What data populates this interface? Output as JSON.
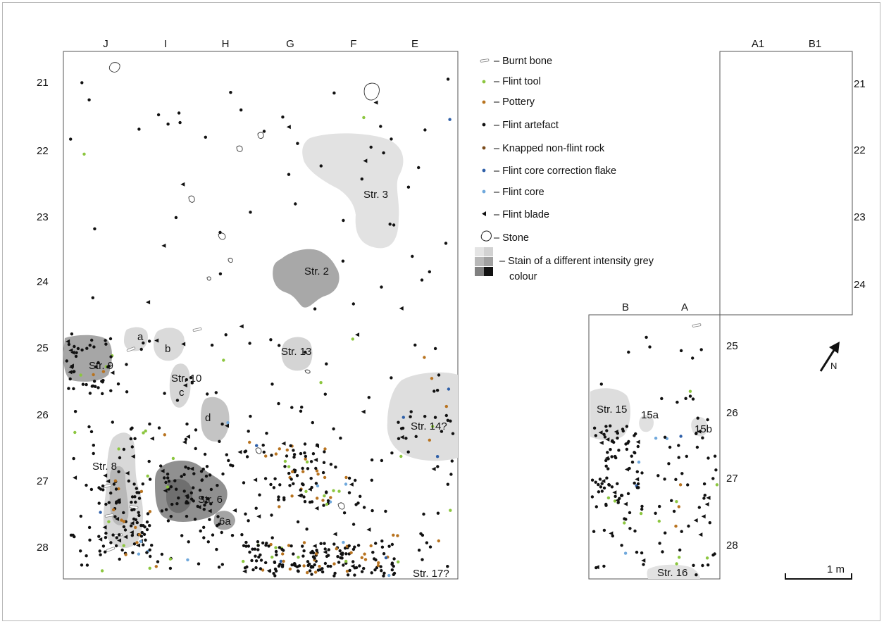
{
  "columns": {
    "main": [
      "J",
      "I",
      "H",
      "G",
      "F",
      "E"
    ],
    "ne": [
      "A1",
      "B1"
    ],
    "se": [
      "B",
      "A"
    ]
  },
  "rows": {
    "main": [
      "21",
      "22",
      "23",
      "24",
      "25",
      "26",
      "27",
      "28"
    ],
    "ne": [
      "21",
      "22",
      "23",
      "24"
    ],
    "se": [
      "25",
      "26",
      "27",
      "28"
    ]
  },
  "structures": {
    "str2": "Str. 2",
    "str3": "Str. 3",
    "str6": "Str. 6",
    "str6a": "6a",
    "str8": "Str. 8",
    "str9": "Str. 9",
    "str10": "Str. 10",
    "str13": "Str. 13",
    "str14": "Str. 14?",
    "str15": "Str. 15",
    "str15a": "15a",
    "str15b": "15b",
    "str16": "Str. 16",
    "str17": "Str. 17?",
    "a": "a",
    "b": "b",
    "c": "c",
    "d": "d"
  },
  "legend": [
    {
      "symbol": "burnt-bone",
      "label": "– Burnt bone"
    },
    {
      "symbol": "flint-tool",
      "label": "– Flint tool",
      "color": "#8cc63f"
    },
    {
      "symbol": "pottery",
      "label": "– Pottery",
      "color": "#b8731f"
    },
    {
      "symbol": "flint-artefact",
      "label": "– Flint artefact",
      "color": "#111111"
    },
    {
      "symbol": "knapped-rock",
      "label": "– Knapped non-flint rock",
      "color": "#7a4a1a"
    },
    {
      "symbol": "core-flake",
      "label": "– Flint core correction flake",
      "color": "#2e5fa8"
    },
    {
      "symbol": "flint-core",
      "label": "– Flint core",
      "color": "#6fa8dc"
    },
    {
      "symbol": "flint-blade",
      "label": "– Flint blade",
      "color": "#111111"
    },
    {
      "symbol": "stone",
      "label": "– Stone"
    },
    {
      "symbol": "stain",
      "label": "– Stain of a different intensity grey",
      "label2": "colour"
    }
  ],
  "north_label": "N",
  "scale_label": "1 m"
}
